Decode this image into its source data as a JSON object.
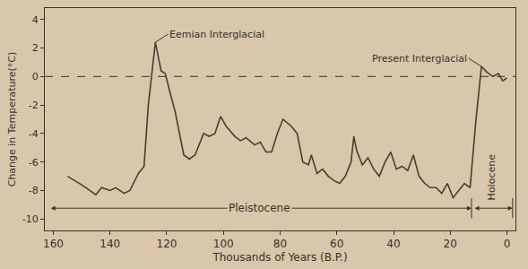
{
  "chart_data": {
    "type": "line",
    "x_label": "Thousands of Years (B.P.)",
    "y_label": "Change in Temperature(°C)",
    "x": [
      155,
      150,
      145,
      143,
      140,
      138,
      135,
      133,
      130,
      128,
      126.5,
      124,
      122,
      120.5,
      119,
      117,
      114,
      112,
      110,
      107,
      105,
      103,
      101,
      99,
      96,
      94,
      92,
      89,
      87,
      85,
      83,
      81,
      79,
      76,
      74,
      72,
      70,
      69,
      67,
      65,
      63,
      61,
      59,
      57,
      56,
      55,
      54,
      53,
      51,
      49,
      47,
      45,
      43,
      41,
      39,
      37,
      35,
      33,
      31,
      29,
      27,
      25,
      23,
      21,
      19,
      17,
      15,
      13,
      11,
      9,
      7,
      5,
      3,
      1.5,
      0
    ],
    "values": [
      -7,
      -7.6,
      -8.3,
      -7.8,
      -8,
      -7.8,
      -8.2,
      -8,
      -6.8,
      -6.3,
      -2,
      2.4,
      0.4,
      0.2,
      -1,
      -2.5,
      -5.5,
      -5.8,
      -5.5,
      -4,
      -4.2,
      -4,
      -2.8,
      -3.5,
      -4.2,
      -4.5,
      -4.3,
      -4.8,
      -4.6,
      -5.3,
      -5.3,
      -4,
      -3,
      -3.5,
      -4,
      -6,
      -6.2,
      -5.5,
      -6.8,
      -6.5,
      -7,
      -7.3,
      -7.5,
      -7,
      -6.5,
      -6,
      -4.2,
      -5.2,
      -6.2,
      -5.7,
      -6.5,
      -7,
      -6,
      -5.3,
      -6.5,
      -6.3,
      -6.6,
      -5.5,
      -7,
      -7.5,
      -7.8,
      -7.8,
      -8.2,
      -7.5,
      -8.5,
      -8,
      -7.5,
      -7.8,
      -3.2,
      0.7,
      0.3,
      0,
      0.2,
      -0.3,
      -0.1
    ],
    "color": "#4a3d30",
    "xlim": [
      163,
      -3
    ],
    "ylim": [
      -10.8,
      4.8
    ],
    "xticks": [
      160,
      140,
      120,
      100,
      80,
      60,
      40,
      20,
      0
    ],
    "yticks": [
      4,
      2,
      0,
      -2,
      -4,
      -6,
      -8,
      -10
    ],
    "grid": false,
    "baseline": 0,
    "annotations": [
      {
        "text": "Eemian Interglacial",
        "x": 124,
        "y": 2.4
      },
      {
        "text": "Present Interglacial",
        "x": 9,
        "y": 0.7
      }
    ],
    "periods": [
      {
        "label": "Pleistocene",
        "from": 162,
        "to": 12.5
      },
      {
        "label": "Holocene",
        "from": 12.5,
        "to": -2
      }
    ]
  }
}
